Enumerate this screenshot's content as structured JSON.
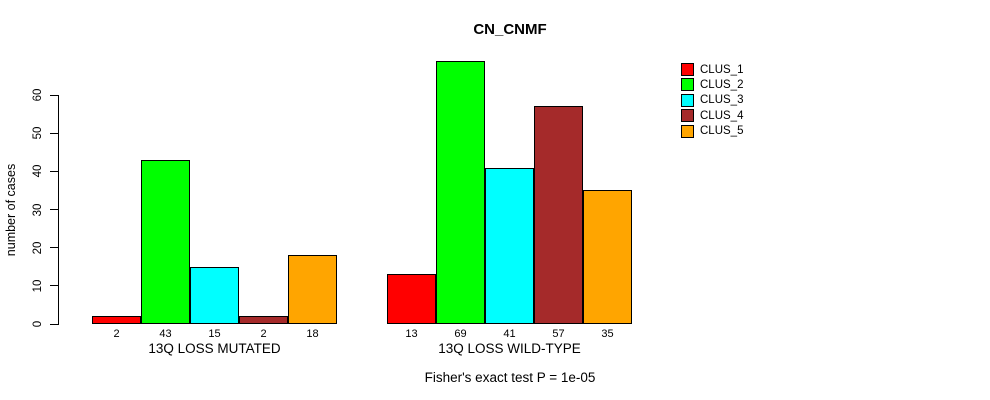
{
  "chart_data": {
    "type": "bar",
    "title": "CN_CNMF",
    "ylabel": "number of cases",
    "xlabel": "",
    "annotation": "Fisher's exact test P = 1e-05",
    "ylim": [
      0,
      60
    ],
    "yticks": [
      0,
      10,
      20,
      30,
      40,
      50,
      60
    ],
    "grid": false,
    "legend_position": "right",
    "categories": [
      "13Q LOSS MUTATED",
      "13Q LOSS WILD-TYPE"
    ],
    "groups": [
      {
        "label": "13Q LOSS MUTATED",
        "values": [
          2,
          43,
          15,
          2,
          18
        ]
      },
      {
        "label": "13Q LOSS WILD-TYPE",
        "values": [
          13,
          69,
          41,
          57,
          35
        ]
      }
    ],
    "series": [
      {
        "name": "CLUS_1",
        "color": "#FF0000"
      },
      {
        "name": "CLUS_2",
        "color": "#00FF00"
      },
      {
        "name": "CLUS_3",
        "color": "#00FFFF"
      },
      {
        "name": "CLUS_4",
        "color": "#A52A2A"
      },
      {
        "name": "CLUS_5",
        "color": "#FFA500"
      }
    ]
  }
}
